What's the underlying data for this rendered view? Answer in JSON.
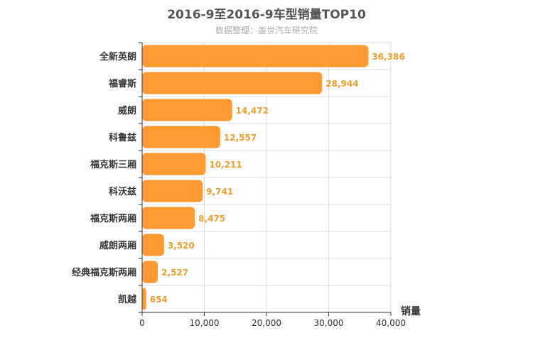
{
  "chart_data": {
    "type": "bar",
    "orientation": "horizontal",
    "title": "2016-9至2016-9车型销量TOP10",
    "subtitle": "数据整理：盖世汽车研究院",
    "categories": [
      "全新英朗",
      "福睿斯",
      "威朗",
      "科鲁兹",
      "福克斯三厢",
      "科沃兹",
      "福克斯两厢",
      "威朗两厢",
      "经典福克斯两厢",
      "凯越"
    ],
    "values": [
      36386,
      28944,
      14472,
      12557,
      10211,
      9741,
      8475,
      3520,
      2527,
      654
    ],
    "value_labels": [
      "36,386",
      "28,944",
      "14,472",
      "12,557",
      "10,211",
      "9,741",
      "8,475",
      "3,520",
      "2,527",
      "654"
    ],
    "xlabel": "销量",
    "ylabel": "",
    "xlim": [
      0,
      40000
    ],
    "xticks": [
      0,
      10000,
      20000,
      30000,
      40000
    ],
    "xtick_labels": [
      "0",
      "10,000",
      "20,000",
      "30,000",
      "40,000"
    ],
    "grid": true,
    "bar_color": "#ff9933",
    "label_color": "#f0a030"
  }
}
